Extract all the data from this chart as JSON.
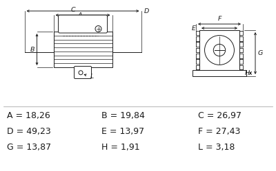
{
  "bg_color": "#ffffff",
  "table_rows": [
    [
      "A = 18,26",
      "B = 19,84",
      "C = 26,97"
    ],
    [
      "D = 49,23",
      "E = 13,97",
      "F = 27,43"
    ],
    [
      "G = 13,87",
      "H = 1,91",
      "L = 3,18"
    ]
  ],
  "text_color": "#1a1a1a",
  "line_color": "#1a1a1a",
  "font_size_table": 9.0,
  "font_size_label": 6.8
}
